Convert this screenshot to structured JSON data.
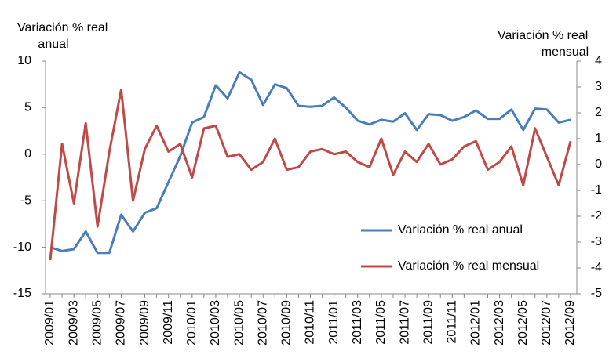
{
  "chart_data": {
    "type": "line",
    "ylabel": [
      "Variación % real",
      "anual"
    ],
    "y2label": [
      "Variación % real",
      "mensual"
    ],
    "categories": [
      "2009/01",
      null,
      "2009/03",
      null,
      "2009/05",
      null,
      "2009/07",
      null,
      "2009/09",
      null,
      "2009/11",
      null,
      "2010/01",
      null,
      "2010/03",
      null,
      "2010/05",
      null,
      "2010/07",
      null,
      "2010/09",
      null,
      "2010/11",
      null,
      "2011/01",
      null,
      "2011/03",
      null,
      "2011/05",
      null,
      "2011/07",
      null,
      "2011/09",
      null,
      "2011/11",
      null,
      "2012/01",
      null,
      "2012/03",
      null,
      "2012/05",
      null,
      "2012/07",
      null,
      "2012/09"
    ],
    "series": [
      {
        "name": "Variación % real anual",
        "color": "#4a7ebb",
        "values": [
          -10,
          -10.4,
          -10.2,
          -8.3,
          -10.6,
          -10.6,
          -6.5,
          -8.3,
          -6.3,
          -5.8,
          -3,
          -0.2,
          3.4,
          4,
          7.4,
          6,
          8.8,
          8,
          5.3,
          7.5,
          7.1,
          5.2,
          5.1,
          5.2,
          6.1,
          5,
          3.6,
          3.2,
          3.7,
          3.5,
          4.4,
          2.6,
          4.3,
          4.2,
          3.6,
          4,
          4.7,
          3.8,
          3.8,
          4.8,
          2.6,
          4.9,
          4.8,
          3.4,
          3.7
        ]
      },
      {
        "name": "Variación % real mensual",
        "color": "#be4b48",
        "axis": "y2",
        "values": [
          -3.7,
          0.8,
          -1.5,
          1.6,
          -2.4,
          0.5,
          2.9,
          -1.4,
          0.6,
          1.5,
          0.5,
          0.8,
          -0.5,
          1.4,
          1.5,
          0.3,
          0.4,
          -0.2,
          0.1,
          1,
          -0.2,
          -0.1,
          0.5,
          0.6,
          0.4,
          0.5,
          0.1,
          -0.1,
          1,
          -0.4,
          0.5,
          0.1,
          0.8,
          0,
          0.2,
          0.7,
          0.9,
          -0.2,
          0.1,
          0.7,
          -0.8,
          1.4,
          0.3,
          -0.8,
          0.9
        ]
      }
    ],
    "ylim": [
      -15,
      10
    ],
    "yticks": [
      -15,
      -10,
      -5,
      0,
      5,
      10
    ],
    "y2lim": [
      -5,
      4
    ],
    "y2ticks": [
      -5,
      -4,
      -3,
      -2,
      -1,
      0,
      1,
      2,
      3,
      4
    ],
    "legend": "right"
  }
}
